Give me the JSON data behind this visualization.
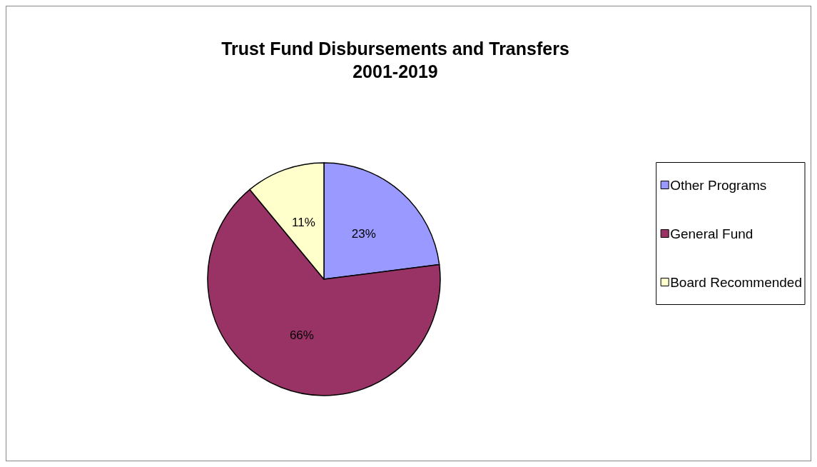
{
  "chart_data": {
    "type": "pie",
    "title": "Trust Fund Disbursements and Transfers\n2001-2019",
    "categories": [
      "Other Programs",
      "General Fund",
      "Board Recommended"
    ],
    "values": [
      23,
      66,
      11
    ],
    "value_labels": [
      "23%",
      "66%",
      "11%"
    ],
    "colors": [
      "#9999ff",
      "#993366",
      "#ffffcc"
    ],
    "legend": "right"
  }
}
